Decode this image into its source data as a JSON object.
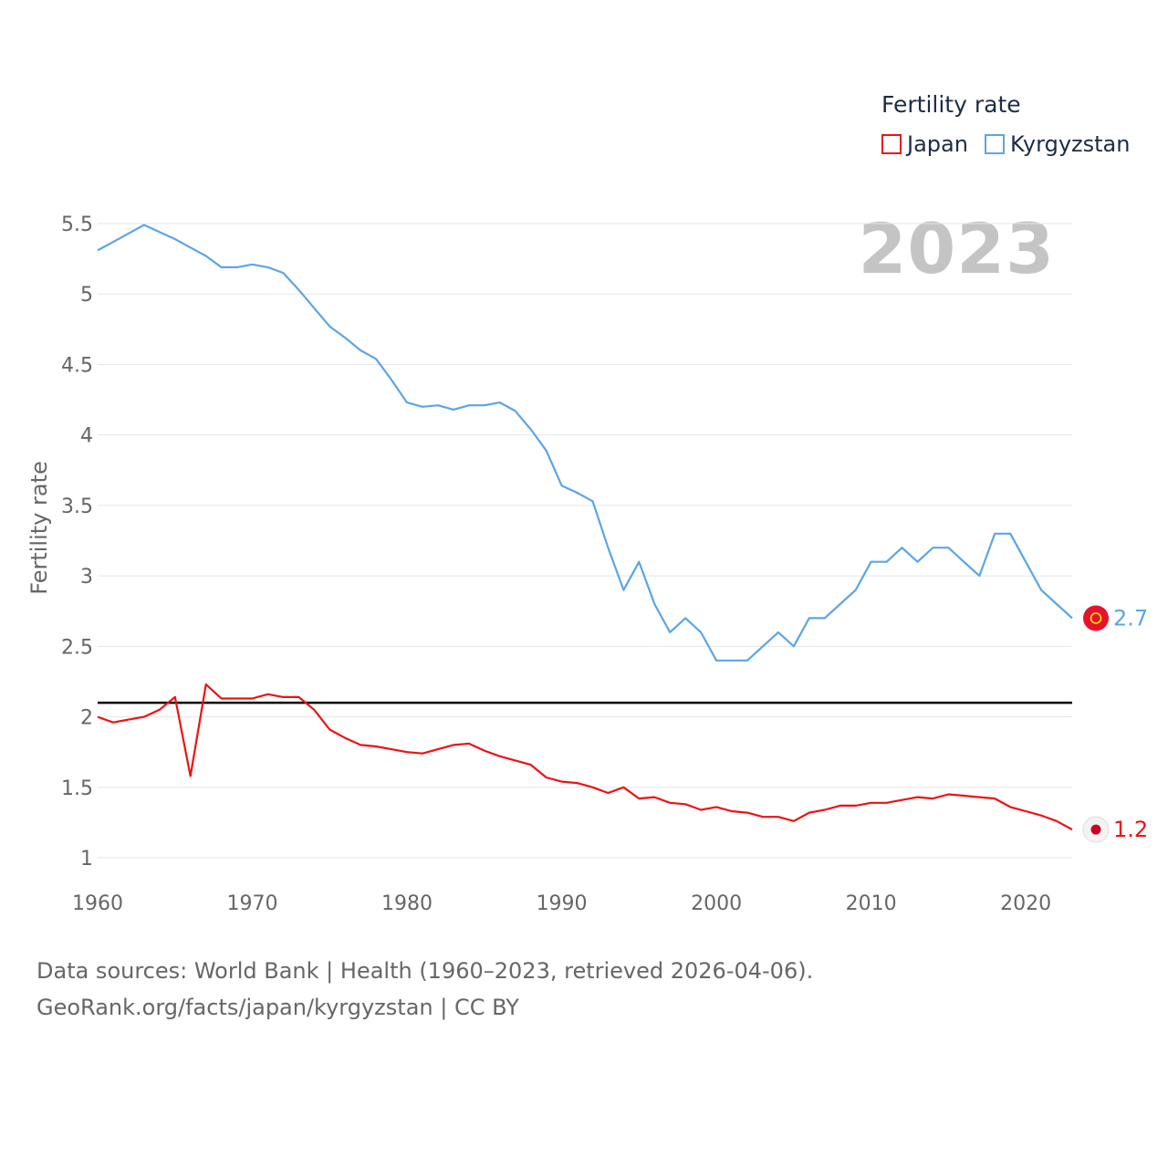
{
  "legend": {
    "title": "Fertility rate",
    "items": [
      {
        "name": "Japan",
        "color": "#ee1111"
      },
      {
        "name": "Kyrgyzstan",
        "color": "#5ba5e6"
      }
    ]
  },
  "year_label": "2023",
  "source": {
    "line1": "Data sources: World Bank | Health (1960–2023, retrieved 2026-04-06).",
    "line2": "GeoRank.org/facts/japan/kyrgyzstan | CC BY"
  },
  "chart_data": {
    "type": "line",
    "title": "Fertility rate",
    "xlabel": "",
    "ylabel": "Fertility rate",
    "xlim": [
      1960,
      2023
    ],
    "ylim": [
      1,
      5.5
    ],
    "x_ticks": [
      1960,
      1970,
      1980,
      1990,
      2000,
      2010,
      2020
    ],
    "y_ticks": [
      1,
      1.5,
      2,
      2.5,
      3,
      3.5,
      4,
      4.5,
      5,
      5.5
    ],
    "y_tick_labels": [
      "1",
      "1.5",
      "2",
      "2.5",
      "3",
      "3.5",
      "4",
      "4.5",
      "5",
      "5.5"
    ],
    "grid": true,
    "reference_line": {
      "y": 2.1,
      "color": "#000000"
    },
    "x": [
      1960,
      1961,
      1962,
      1963,
      1964,
      1965,
      1966,
      1967,
      1968,
      1969,
      1970,
      1971,
      1972,
      1973,
      1974,
      1975,
      1976,
      1977,
      1978,
      1979,
      1980,
      1981,
      1982,
      1983,
      1984,
      1985,
      1986,
      1987,
      1988,
      1989,
      1990,
      1991,
      1992,
      1993,
      1994,
      1995,
      1996,
      1997,
      1998,
      1999,
      2000,
      2001,
      2002,
      2003,
      2004,
      2005,
      2006,
      2007,
      2008,
      2009,
      2010,
      2011,
      2012,
      2013,
      2014,
      2015,
      2016,
      2017,
      2018,
      2019,
      2020,
      2021,
      2022,
      2023
    ],
    "series": [
      {
        "name": "Japan",
        "color": "#ee1111",
        "end_label": "1.2",
        "values": [
          2.0,
          1.96,
          1.98,
          2.0,
          2.05,
          2.14,
          1.58,
          2.23,
          2.13,
          2.13,
          2.13,
          2.16,
          2.14,
          2.14,
          2.05,
          1.91,
          1.85,
          1.8,
          1.79,
          1.77,
          1.75,
          1.74,
          1.77,
          1.8,
          1.81,
          1.76,
          1.72,
          1.69,
          1.66,
          1.57,
          1.54,
          1.53,
          1.5,
          1.46,
          1.5,
          1.42,
          1.43,
          1.39,
          1.38,
          1.34,
          1.36,
          1.33,
          1.32,
          1.29,
          1.29,
          1.26,
          1.32,
          1.34,
          1.37,
          1.37,
          1.39,
          1.39,
          1.41,
          1.43,
          1.42,
          1.45,
          1.44,
          1.43,
          1.42,
          1.36,
          1.33,
          1.3,
          1.26,
          1.2
        ]
      },
      {
        "name": "Kyrgyzstan",
        "color": "#5ba5e6",
        "end_label": "2.7",
        "values": [
          5.31,
          5.37,
          5.43,
          5.49,
          5.44,
          5.39,
          5.33,
          5.27,
          5.19,
          5.19,
          5.21,
          5.19,
          5.15,
          5.03,
          4.9,
          4.77,
          4.69,
          4.6,
          4.54,
          4.39,
          4.23,
          4.2,
          4.21,
          4.18,
          4.21,
          4.21,
          4.23,
          4.17,
          4.04,
          3.89,
          3.64,
          3.59,
          3.53,
          3.2,
          2.9,
          3.1,
          2.8,
          2.6,
          2.7,
          2.6,
          2.4,
          2.4,
          2.4,
          2.5,
          2.6,
          2.5,
          2.7,
          2.7,
          2.8,
          2.9,
          3.1,
          3.1,
          3.2,
          3.1,
          3.2,
          3.2,
          3.1,
          3.0,
          3.3,
          3.3,
          3.1,
          2.9,
          2.8,
          2.7
        ]
      }
    ]
  }
}
